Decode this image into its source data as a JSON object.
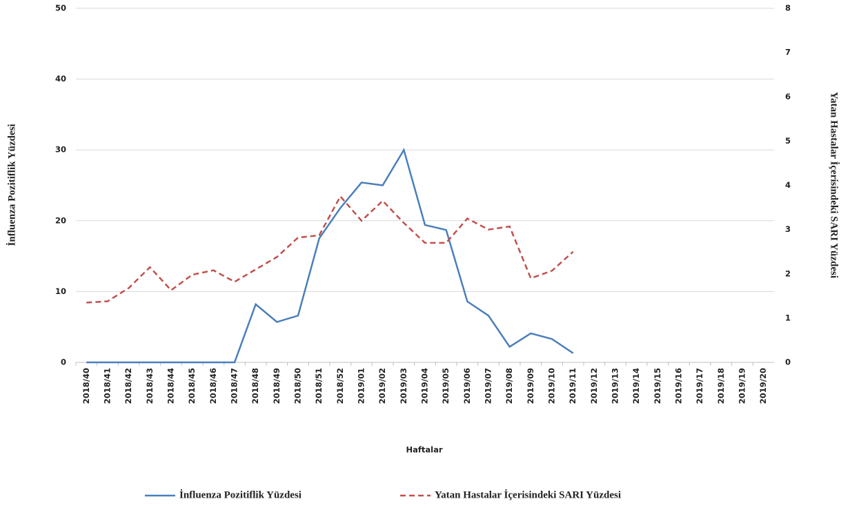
{
  "chart_data": {
    "type": "line",
    "x_label": "Haftalar",
    "y_label": "İnfluenza Pozitiflik Yüzdesi",
    "y2_label": "Yatan Hastalar İçerisindeki SARI Yüzdesi",
    "categories": [
      "2018/40",
      "2018/41",
      "2018/42",
      "2018/43",
      "2018/44",
      "2018/45",
      "2018/46",
      "2018/47",
      "2018/48",
      "2018/49",
      "2018/50",
      "2018/51",
      "2018/52",
      "2019/01",
      "2019/02",
      "2019/03",
      "2019/04",
      "2019/05",
      "2019/06",
      "2019/07",
      "2019/08",
      "2019/09",
      "2019/10",
      "2019/11",
      "2019/12",
      "2019/13",
      "2019/14",
      "2019/15",
      "2019/16",
      "2019/17",
      "2019/18",
      "2019/19",
      "2019/20"
    ],
    "series": [
      {
        "name": "İnfluenza Pozitiflik Yüzdesi",
        "color": "#4a7ebb",
        "dash": false,
        "values": [
          0,
          0,
          0,
          0,
          0,
          0,
          0,
          0,
          8.2,
          5.7,
          6.6,
          17.5,
          21.8,
          25.4,
          25.0,
          30.0,
          19.4,
          18.7,
          8.6,
          6.6,
          2.2,
          4.1,
          3.3,
          1.3,
          null,
          null,
          null,
          null,
          null,
          null,
          null,
          null,
          null
        ]
      },
      {
        "name": "Yatan Hastalar İçerisindeki SARI Yüzdesi",
        "color": "#c0504d",
        "dash": true,
        "axis": "y2",
        "values": [
          1.35,
          1.38,
          1.68,
          2.15,
          1.63,
          1.98,
          2.08,
          1.82,
          2.1,
          2.38,
          2.82,
          2.87,
          3.75,
          3.2,
          3.65,
          3.15,
          2.7,
          2.7,
          3.25,
          3.0,
          3.07,
          1.9,
          2.07,
          2.5,
          null,
          null,
          null,
          null,
          null,
          null,
          null,
          null,
          null
        ]
      }
    ],
    "ylim": [
      0,
      50
    ],
    "yticks": [
      0,
      10,
      20,
      30,
      40,
      50
    ],
    "y2lim": [
      0,
      8
    ],
    "y2ticks": [
      0,
      1,
      2,
      3,
      4,
      5,
      6,
      7,
      8
    ],
    "grid": true
  }
}
